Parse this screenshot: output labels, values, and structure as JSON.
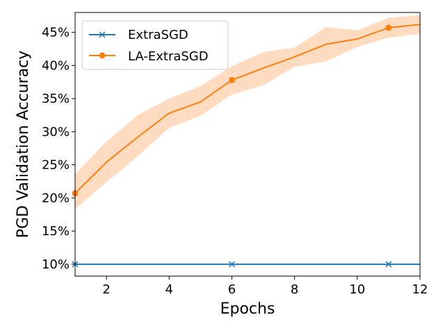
{
  "chart_data": {
    "type": "line",
    "xlabel": "Epochs",
    "ylabel": "PGD Validation Accuracy",
    "xlim": [
      1,
      12
    ],
    "ylim": [
      8.2,
      48
    ],
    "x_ticks": [
      2,
      4,
      6,
      8,
      10,
      12
    ],
    "y_ticks": [
      10,
      15,
      20,
      25,
      30,
      35,
      40,
      45
    ],
    "y_tick_labels": [
      "10%",
      "15%",
      "20%",
      "25%",
      "30%",
      "35%",
      "40%",
      "45%"
    ],
    "grid": false,
    "legend_position": "top-left",
    "x": [
      1,
      2,
      3,
      4,
      5,
      6,
      7,
      8,
      9,
      10,
      11,
      12
    ],
    "series": [
      {
        "name": "ExtraSGD",
        "color": "#1f77b4",
        "marker": "x",
        "marker_at": [
          1,
          6,
          11
        ],
        "values": [
          10,
          10,
          10,
          10,
          10,
          10,
          10,
          10,
          10,
          10,
          10,
          10
        ]
      },
      {
        "name": "LA-ExtraSGD",
        "color": "#ff7f0e",
        "band_color": "#ffdcc0",
        "marker": "o",
        "marker_at": [
          1,
          6,
          11
        ],
        "values": [
          20.7,
          25.4,
          29.2,
          32.8,
          34.5,
          37.8,
          39.6,
          41.3,
          43.2,
          44.0,
          45.7,
          46.2
        ],
        "lower": [
          18.3,
          22.4,
          26.3,
          30.6,
          32.4,
          35.6,
          37.0,
          39.8,
          40.6,
          42.8,
          44.2,
          44.8
        ],
        "upper": [
          23.6,
          28.5,
          32.5,
          35.0,
          36.9,
          39.9,
          42.0,
          42.7,
          45.8,
          45.3,
          47.2,
          47.6
        ]
      }
    ]
  }
}
